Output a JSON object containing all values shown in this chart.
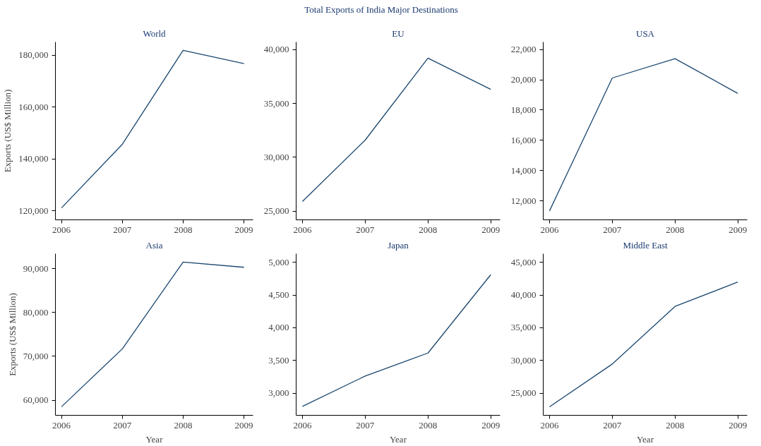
{
  "chart_data": [
    {
      "type": "other",
      "title": "Total Exports of India Major Destinations"
    },
    {
      "type": "line",
      "title": "World",
      "ylabel": "Exports (US$ Million)",
      "x": [
        2006,
        2007,
        2008,
        2009
      ],
      "xlim": [
        2005.9,
        2009.15
      ],
      "xticks": [
        2006,
        2007,
        2008,
        2009
      ],
      "ylim": [
        116600,
        185100
      ],
      "yticks": [
        {
          "value": 120000,
          "label": "120,000"
        },
        {
          "value": 140000,
          "label": "140,000"
        },
        {
          "value": 160000,
          "label": "160,000"
        },
        {
          "value": 180000,
          "label": "180,000"
        }
      ],
      "series": [
        {
          "color": "#1a476f",
          "values": [
            121200,
            145700,
            181900,
            176800
          ]
        }
      ],
      "grid": false
    },
    {
      "type": "line",
      "title": "EU",
      "x": [
        2006,
        2007,
        2008,
        2009
      ],
      "xlim": [
        2005.9,
        2009.15
      ],
      "xticks": [
        2006,
        2007,
        2008,
        2009
      ],
      "ylim": [
        24200,
        40700
      ],
      "yticks": [
        {
          "value": 25000,
          "label": "25,000"
        },
        {
          "value": 30000,
          "label": "30,000"
        },
        {
          "value": 35000,
          "label": "35,000"
        },
        {
          "value": 40000,
          "label": "40,000"
        }
      ],
      "series": [
        {
          "color": "#1a476f",
          "values": [
            25900,
            31600,
            39200,
            36300
          ]
        }
      ],
      "grid": false
    },
    {
      "type": "line",
      "title": "USA",
      "x": [
        2006,
        2007,
        2008,
        2009
      ],
      "xlim": [
        2005.9,
        2009.15
      ],
      "xticks": [
        2006,
        2007,
        2008,
        2009
      ],
      "ylim": [
        10740,
        22500
      ],
      "yticks": [
        {
          "value": 12000,
          "label": "12,000"
        },
        {
          "value": 14000,
          "label": "14,000"
        },
        {
          "value": 16000,
          "label": "16,000"
        },
        {
          "value": 18000,
          "label": "18,000"
        },
        {
          "value": 20000,
          "label": "20,000"
        },
        {
          "value": 22000,
          "label": "22,000"
        }
      ],
      "series": [
        {
          "color": "#1a476f",
          "values": [
            11330,
            20120,
            21400,
            19100
          ]
        }
      ],
      "grid": false
    },
    {
      "type": "line",
      "title": "Asia",
      "xlabel": "Year",
      "ylabel": "Exports (US$ Million)",
      "x": [
        2006,
        2007,
        2008,
        2009
      ],
      "xlim": [
        2005.9,
        2009.15
      ],
      "xticks": [
        2006,
        2007,
        2008,
        2009
      ],
      "ylim": [
        56550,
        93400
      ],
      "yticks": [
        {
          "value": 60000,
          "label": "60,000"
        },
        {
          "value": 70000,
          "label": "70,000"
        },
        {
          "value": 80000,
          "label": "80,000"
        },
        {
          "value": 90000,
          "label": "90,000"
        }
      ],
      "series": [
        {
          "color": "#1a476f",
          "values": [
            58500,
            71700,
            91500,
            90300
          ]
        }
      ],
      "grid": false
    },
    {
      "type": "line",
      "title": "Japan",
      "xlabel": "Year",
      "x": [
        2006,
        2007,
        2008,
        2009
      ],
      "xlim": [
        2005.9,
        2009.15
      ],
      "xticks": [
        2006,
        2007,
        2008,
        2009
      ],
      "ylim": [
        2665,
        5130
      ],
      "yticks": [
        {
          "value": 3000,
          "label": "3,000"
        },
        {
          "value": 3500,
          "label": "3,500"
        },
        {
          "value": 4000,
          "label": "4,000"
        },
        {
          "value": 4500,
          "label": "4,500"
        },
        {
          "value": 5000,
          "label": "5,000"
        }
      ],
      "series": [
        {
          "color": "#1a476f",
          "values": [
            2800,
            3264,
            3615,
            4810
          ]
        }
      ],
      "grid": false
    },
    {
      "type": "line",
      "title": "Middle East",
      "xlabel": "Year",
      "x": [
        2006,
        2007,
        2008,
        2009
      ],
      "xlim": [
        2005.9,
        2009.15
      ],
      "xticks": [
        2006,
        2007,
        2008,
        2009
      ],
      "ylim": [
        21650,
        46300
      ],
      "yticks": [
        {
          "value": 25000,
          "label": "25,000"
        },
        {
          "value": 30000,
          "label": "30,000"
        },
        {
          "value": 35000,
          "label": "35,000"
        },
        {
          "value": 40000,
          "label": "40,000"
        },
        {
          "value": 45000,
          "label": "45,000"
        }
      ],
      "series": [
        {
          "color": "#1a476f",
          "values": [
            22950,
            29470,
            38260,
            41980
          ]
        }
      ],
      "grid": false
    }
  ]
}
